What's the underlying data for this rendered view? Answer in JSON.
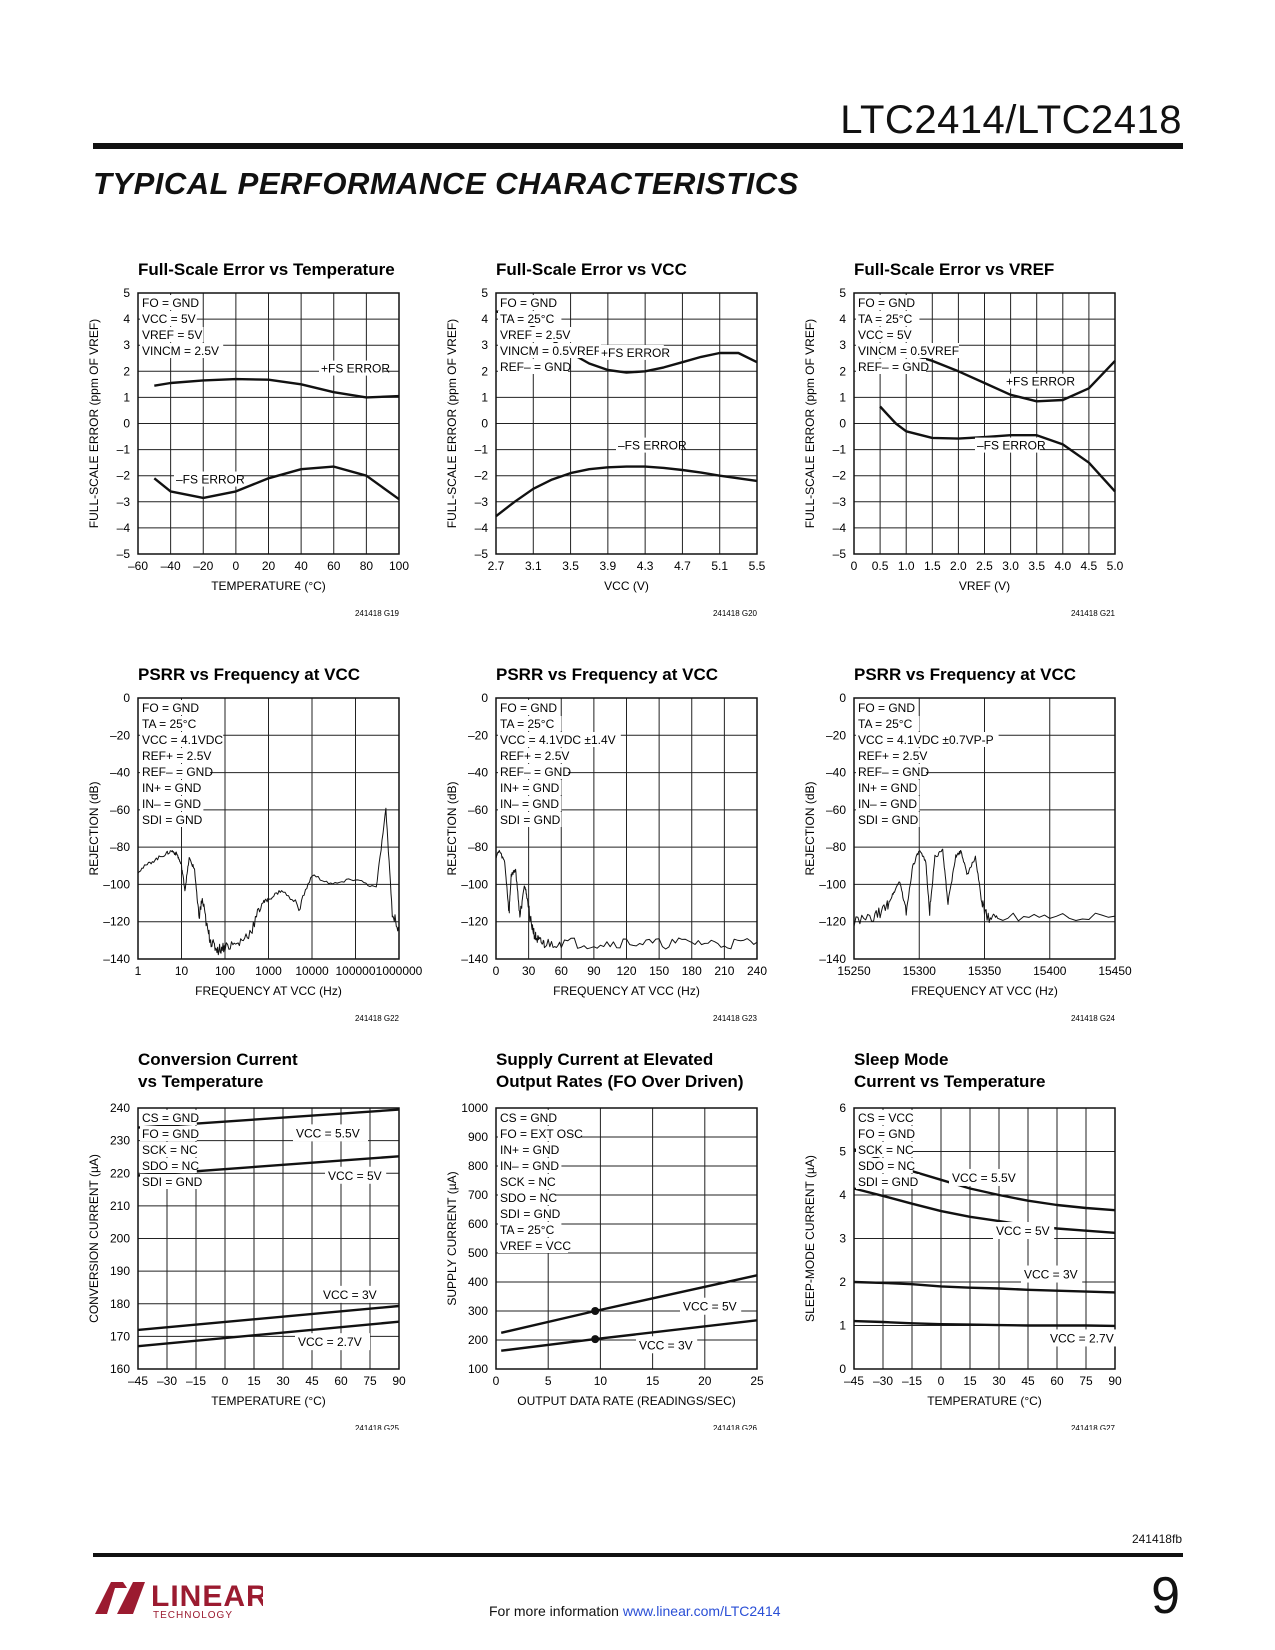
{
  "header": {
    "part_number": "LTC2414/LTC2418",
    "section_title": "TYPICAL PERFORMANCE CHARACTERISTICS"
  },
  "footer": {
    "doc_number": "241418fb",
    "more_info_text": "For more information ",
    "link_text": "www.linear.com/LTC2414",
    "page_number": "9",
    "logo_text": "LINEAR",
    "logo_subtext": "TECHNOLOGY"
  },
  "colors": {
    "ink": "#111111",
    "grid": "#222222",
    "link": "#2a4fd6",
    "logo": "#9b1b30"
  },
  "chart_data": [
    {
      "id": "G19",
      "type": "line",
      "title": "Full-Scale Error vs Temperature",
      "xlabel": "TEMPERATURE (°C)",
      "ylabel": "FULL-SCALE ERROR (ppm OF VREF)",
      "xlim": [
        -60,
        100
      ],
      "ylim": [
        -5,
        5
      ],
      "xticks": [
        -60,
        -40,
        -20,
        0,
        20,
        40,
        60,
        80,
        100
      ],
      "xtick_labels": [
        "–60",
        "–40",
        "–20",
        "0",
        "20",
        "40",
        "60",
        "80",
        "100"
      ],
      "yticks": [
        -5,
        -4,
        -3,
        -2,
        -1,
        0,
        1,
        2,
        3,
        4,
        5
      ],
      "ytick_labels": [
        "–5",
        "–4",
        "–3",
        "–2",
        "–1",
        "0",
        "1",
        "2",
        "3",
        "4",
        "5"
      ],
      "grid": true,
      "fig_id": "241418 G19",
      "conditions": [
        "FO = GND",
        "VCC = 5V",
        "VREF = 5V",
        "VINCM = 2.5V"
      ],
      "annotations": [
        "+FS ERROR",
        "–FS ERROR"
      ],
      "series": [
        {
          "x": [
            -50,
            -40,
            -20,
            0,
            20,
            40,
            60,
            80,
            100
          ],
          "y": [
            1.45,
            1.55,
            1.65,
            1.7,
            1.68,
            1.5,
            1.2,
            1.0,
            1.05
          ]
        },
        {
          "x": [
            -50,
            -40,
            -20,
            0,
            20,
            40,
            60,
            80,
            100
          ],
          "y": [
            -2.1,
            -2.6,
            -2.85,
            -2.6,
            -2.1,
            -1.75,
            -1.65,
            -2.0,
            -2.9
          ]
        }
      ]
    },
    {
      "id": "G20",
      "type": "line",
      "title": "Full-Scale Error vs VCC",
      "xlabel": "VCC (V)",
      "ylabel": "FULL-SCALE ERROR (ppm OF VREF)",
      "xlim": [
        2.7,
        5.5
      ],
      "ylim": [
        -5,
        5
      ],
      "xticks": [
        2.7,
        3.1,
        3.5,
        3.9,
        4.3,
        4.7,
        5.1,
        5.5
      ],
      "xtick_labels": [
        "2.7",
        "3.1",
        "3.5",
        "3.9",
        "4.3",
        "4.7",
        "5.1",
        "5.5"
      ],
      "yticks": [
        -5,
        -4,
        -3,
        -2,
        -1,
        0,
        1,
        2,
        3,
        4,
        5
      ],
      "ytick_labels": [
        "–5",
        "–4",
        "–3",
        "–2",
        "–1",
        "0",
        "1",
        "2",
        "3",
        "4",
        "5"
      ],
      "grid": true,
      "fig_id": "241418 G20",
      "conditions": [
        "FO = GND",
        "TA = 25°C",
        "VREF = 2.5V",
        "VINCM = 0.5VREF",
        "REF– = GND"
      ],
      "annotations": [
        "+FS ERROR",
        "–FS ERROR"
      ],
      "series": [
        {
          "x": [
            2.7,
            2.9,
            3.1,
            3.3,
            3.5,
            3.7,
            3.9,
            4.1,
            4.3,
            4.5,
            4.7,
            4.9,
            5.1,
            5.3,
            5.5
          ],
          "y": [
            4.3,
            4.1,
            3.7,
            3.2,
            2.7,
            2.3,
            2.05,
            1.95,
            2.0,
            2.15,
            2.35,
            2.55,
            2.7,
            2.7,
            2.35
          ]
        },
        {
          "x": [
            2.7,
            2.9,
            3.1,
            3.3,
            3.5,
            3.7,
            3.9,
            4.1,
            4.3,
            4.5,
            4.7,
            4.9,
            5.1,
            5.3,
            5.5
          ],
          "y": [
            -3.55,
            -3.0,
            -2.5,
            -2.15,
            -1.9,
            -1.75,
            -1.68,
            -1.65,
            -1.65,
            -1.7,
            -1.78,
            -1.88,
            -2.0,
            -2.1,
            -2.2
          ]
        }
      ]
    },
    {
      "id": "G21",
      "type": "line",
      "title": "Full-Scale Error vs VREF",
      "xlabel": "VREF (V)",
      "ylabel": "FULL-SCALE ERROR (ppm OF VREF)",
      "xlim": [
        0,
        5.0
      ],
      "ylim": [
        -5,
        5
      ],
      "xticks": [
        0,
        0.5,
        1.0,
        1.5,
        2.0,
        2.5,
        3.0,
        3.5,
        4.0,
        4.5,
        5.0
      ],
      "xtick_labels": [
        "0",
        "0.5",
        "1.0",
        "1.5",
        "2.0",
        "2.5",
        "3.0",
        "3.5",
        "4.0",
        "4.5",
        "5.0"
      ],
      "yticks": [
        -5,
        -4,
        -3,
        -2,
        -1,
        0,
        1,
        2,
        3,
        4,
        5
      ],
      "ytick_labels": [
        "–5",
        "–4",
        "–3",
        "–2",
        "–1",
        "0",
        "1",
        "2",
        "3",
        "4",
        "5"
      ],
      "grid": true,
      "fig_id": "241418 G21",
      "conditions": [
        "FO = GND",
        "TA = 25°C",
        "VCC = 5V",
        "VINCM = 0.5VREF",
        "REF– = GND"
      ],
      "annotations": [
        "+FS ERROR",
        "–FS ERROR"
      ],
      "series": [
        {
          "x": [
            0.5,
            1.0,
            1.5,
            2.0,
            2.5,
            3.0,
            3.5,
            4.0,
            4.5,
            5.0
          ],
          "y": [
            2.9,
            2.7,
            2.4,
            2.0,
            1.55,
            1.1,
            0.85,
            0.9,
            1.35,
            2.4
          ]
        },
        {
          "x": [
            0.5,
            0.8,
            1.0,
            1.5,
            2.0,
            2.5,
            3.0,
            3.5,
            4.0,
            4.5,
            5.0
          ],
          "y": [
            0.65,
            0.0,
            -0.3,
            -0.55,
            -0.58,
            -0.52,
            -0.45,
            -0.45,
            -0.8,
            -1.5,
            -2.6
          ]
        }
      ]
    },
    {
      "id": "G22",
      "type": "line",
      "title": "PSRR vs Frequency at VCC",
      "xlabel": "FREQUENCY AT VCC (Hz)",
      "ylabel": "REJECTION (dB)",
      "xscale": "log",
      "xlim": [
        1,
        1000000
      ],
      "ylim": [
        -140,
        0
      ],
      "xticks": [
        1,
        10,
        100,
        1000,
        10000,
        100000,
        1000000
      ],
      "xtick_labels": [
        "1",
        "10",
        "100",
        "1000",
        "10000",
        "100000",
        "1000000"
      ],
      "yticks": [
        -140,
        -120,
        -100,
        -80,
        -60,
        -40,
        -20,
        0
      ],
      "ytick_labels": [
        "–140",
        "–120",
        "–100",
        "–80",
        "–60",
        "–40",
        "–20",
        "0"
      ],
      "grid": true,
      "fig_id": "241418 G22",
      "conditions": [
        "FO = GND",
        "TA = 25°C",
        "VCC = 4.1VDC",
        "REF+ = 2.5V",
        "REF– = GND",
        "IN+ = GND",
        "IN– = GND",
        "SDI = GND"
      ],
      "series": [
        {
          "x": [
            1,
            2,
            4,
            6,
            8,
            10,
            12,
            15,
            20,
            25,
            30,
            40,
            50,
            70,
            100,
            200,
            400,
            700,
            1000,
            2000,
            5000,
            10000,
            30000,
            100000,
            300000,
            500000,
            700000,
            1000000
          ],
          "y": [
            -93,
            -88,
            -84,
            -82,
            -84,
            -90,
            -103,
            -86,
            -92,
            -118,
            -108,
            -125,
            -132,
            -135,
            -133,
            -132,
            -125,
            -110,
            -108,
            -103,
            -112,
            -95,
            -100,
            -97,
            -102,
            -60,
            -115,
            -125
          ]
        }
      ]
    },
    {
      "id": "G23",
      "type": "line",
      "title": "PSRR vs Frequency at VCC",
      "xlabel": "FREQUENCY AT VCC (Hz)",
      "ylabel": "REJECTION (dB)",
      "xlim": [
        0,
        240
      ],
      "ylim": [
        -140,
        0
      ],
      "xticks": [
        0,
        30,
        60,
        90,
        120,
        150,
        180,
        210,
        240
      ],
      "xtick_labels": [
        "0",
        "30",
        "60",
        "90",
        "120",
        "150",
        "180",
        "210",
        "240"
      ],
      "yticks": [
        -140,
        -120,
        -100,
        -80,
        -60,
        -40,
        -20,
        0
      ],
      "ytick_labels": [
        "–140",
        "–120",
        "–100",
        "–80",
        "–60",
        "–40",
        "–20",
        "0"
      ],
      "grid": true,
      "fig_id": "241418 G23",
      "conditions": [
        "FO = GND",
        "TA = 25°C",
        "VCC = 4.1VDC ±1.4V",
        "REF+ = 2.5V",
        "REF– = GND",
        "IN+ = GND",
        "IN– = GND",
        "SDI = GND"
      ],
      "series": [
        {
          "x": [
            0,
            3,
            8,
            12,
            14,
            18,
            22,
            26,
            28,
            32,
            36,
            40,
            45,
            60,
            90,
            120,
            150,
            180,
            210,
            240
          ],
          "y": [
            -85,
            -82,
            -88,
            -115,
            -95,
            -92,
            -117,
            -100,
            -105,
            -120,
            -128,
            -131,
            -132,
            -131,
            -132,
            -131,
            -132,
            -131,
            -132,
            -131
          ]
        }
      ]
    },
    {
      "id": "G24",
      "type": "line",
      "title": "PSRR vs Frequency at VCC",
      "xlabel": "FREQUENCY AT VCC (Hz)",
      "ylabel": "REJECTION (dB)",
      "xlim": [
        15250,
        15450
      ],
      "ylim": [
        -140,
        0
      ],
      "xticks": [
        15250,
        15300,
        15350,
        15400,
        15450
      ],
      "xtick_labels": [
        "15250",
        "15300",
        "15350",
        "15400",
        "15450"
      ],
      "yticks": [
        -140,
        -120,
        -100,
        -80,
        -60,
        -40,
        -20,
        0
      ],
      "ytick_labels": [
        "–140",
        "–120",
        "–100",
        "–80",
        "–60",
        "–40",
        "–20",
        "0"
      ],
      "grid": true,
      "fig_id": "241418 G24",
      "conditions": [
        "FO = GND",
        "TA = 25°C",
        "VCC = 4.1VDC ±0.7VP-P",
        "REF+ = 2.5V",
        "REF– = GND",
        "IN+ = GND",
        "IN– = GND",
        "SDI = GND"
      ],
      "series": [
        {
          "x": [
            15250,
            15265,
            15275,
            15280,
            15285,
            15290,
            15295,
            15300,
            15305,
            15308,
            15312,
            15318,
            15322,
            15328,
            15332,
            15337,
            15343,
            15348,
            15352,
            15360,
            15400,
            15450
          ],
          "y": [
            -120,
            -118,
            -112,
            -105,
            -98,
            -115,
            -90,
            -82,
            -88,
            -115,
            -85,
            -82,
            -110,
            -85,
            -82,
            -95,
            -85,
            -110,
            -118,
            -117,
            -116,
            -117
          ]
        }
      ]
    },
    {
      "id": "G25",
      "type": "line",
      "title": "Conversion Current vs Temperature",
      "xlabel": "TEMPERATURE (°C)",
      "ylabel": "CONVERSION CURRENT (µA)",
      "xlim": [
        -45,
        90
      ],
      "ylim": [
        160,
        240
      ],
      "xticks": [
        -45,
        -30,
        -15,
        0,
        15,
        30,
        45,
        60,
        75,
        90
      ],
      "xtick_labels": [
        "–45",
        "–30",
        "–15",
        "0",
        "15",
        "30",
        "45",
        "60",
        "75",
        "90"
      ],
      "yticks": [
        160,
        170,
        180,
        190,
        200,
        210,
        220,
        230,
        240
      ],
      "ytick_labels": [
        "160",
        "170",
        "180",
        "190",
        "200",
        "210",
        "220",
        "230",
        "240"
      ],
      "grid": true,
      "fig_id": "241418 G25",
      "conditions": [
        "CS = GND",
        "FO = GND",
        "SCK = NC",
        "SDO = NC",
        "SDI = GND"
      ],
      "series": [
        {
          "name": "VCC = 5.5V",
          "x": [
            -45,
            90
          ],
          "y": [
            234,
            239.5
          ]
        },
        {
          "name": "VCC = 5V",
          "x": [
            -45,
            90
          ],
          "y": [
            219.3,
            225.2
          ]
        },
        {
          "name": "VCC = 3V",
          "x": [
            -45,
            90
          ],
          "y": [
            172,
            179.3
          ]
        },
        {
          "name": "VCC = 2.7V",
          "x": [
            -45,
            90
          ],
          "y": [
            167,
            174.5
          ]
        }
      ]
    },
    {
      "id": "G26",
      "type": "line",
      "title": "Supply Current at Elevated Output Rates (FO Over Driven)",
      "xlabel": "OUTPUT DATA RATE (READINGS/SEC)",
      "ylabel": "SUPPLY CURRENT (µA)",
      "xlim": [
        0,
        25
      ],
      "ylim": [
        100,
        1000
      ],
      "xticks": [
        0,
        5,
        10,
        15,
        20,
        25
      ],
      "xtick_labels": [
        "0",
        "5",
        "10",
        "15",
        "20",
        "25"
      ],
      "yticks": [
        100,
        200,
        300,
        400,
        500,
        600,
        700,
        800,
        900,
        1000
      ],
      "ytick_labels": [
        "100",
        "200",
        "300",
        "400",
        "500",
        "600",
        "700",
        "800",
        "900",
        "1000"
      ],
      "grid": true,
      "fig_id": "241418 G26",
      "conditions": [
        "CS = GND",
        "FO = EXT OSC",
        "IN+ = GND",
        "IN– = GND",
        "SCK = NC",
        "SDO = NC",
        "SDI = GND",
        "TA = 25°C",
        "VREF = VCC"
      ],
      "series": [
        {
          "name": "VCC = 5V",
          "x": [
            0.5,
            9.5,
            25
          ],
          "y": [
            225,
            300,
            423
          ],
          "marker_x": 9.5
        },
        {
          "name": "VCC = 3V",
          "x": [
            0.5,
            9.5,
            25
          ],
          "y": [
            163,
            203,
            268
          ],
          "marker_x": 9.5
        }
      ]
    },
    {
      "id": "G27",
      "type": "line",
      "title": "Sleep Mode Current vs Temperature",
      "xlabel": "TEMPERATURE (°C)",
      "ylabel": "SLEEP-MODE CURRENT (µA)",
      "xlim": [
        -45,
        90
      ],
      "ylim": [
        0,
        6
      ],
      "xticks": [
        -45,
        -30,
        -15,
        0,
        15,
        30,
        45,
        60,
        75,
        90
      ],
      "xtick_labels": [
        "–45",
        "–30",
        "–15",
        "0",
        "15",
        "30",
        "45",
        "60",
        "75",
        "90"
      ],
      "yticks": [
        0,
        1,
        2,
        3,
        4,
        5,
        6
      ],
      "ytick_labels": [
        "0",
        "1",
        "2",
        "3",
        "4",
        "5",
        "6"
      ],
      "grid": true,
      "fig_id": "241418 G27",
      "conditions": [
        "CS = VCC",
        "FO = GND",
        "SCK = NC",
        "SDO = NC",
        "SDI = GND"
      ],
      "series": [
        {
          "name": "VCC = 5.5V",
          "x": [
            -45,
            -30,
            -15,
            0,
            15,
            30,
            45,
            60,
            75,
            90
          ],
          "y": [
            5.05,
            4.8,
            4.55,
            4.35,
            4.15,
            4.0,
            3.87,
            3.77,
            3.7,
            3.65
          ]
        },
        {
          "name": "VCC = 5V",
          "x": [
            -45,
            -30,
            -15,
            0,
            15,
            30,
            45,
            60,
            75,
            90
          ],
          "y": [
            4.15,
            3.98,
            3.8,
            3.63,
            3.5,
            3.4,
            3.3,
            3.23,
            3.18,
            3.13
          ]
        },
        {
          "name": "VCC = 3V",
          "x": [
            -45,
            -30,
            -15,
            0,
            15,
            30,
            45,
            60,
            75,
            90
          ],
          "y": [
            2.0,
            1.98,
            1.95,
            1.9,
            1.87,
            1.85,
            1.82,
            1.8,
            1.78,
            1.76
          ]
        },
        {
          "name": "VCC = 2.7V",
          "x": [
            -45,
            -30,
            -15,
            0,
            15,
            30,
            45,
            60,
            75,
            90
          ],
          "y": [
            1.1,
            1.08,
            1.05,
            1.03,
            1.02,
            1.01,
            1.0,
            1.0,
            1.0,
            0.99
          ]
        }
      ]
    }
  ]
}
